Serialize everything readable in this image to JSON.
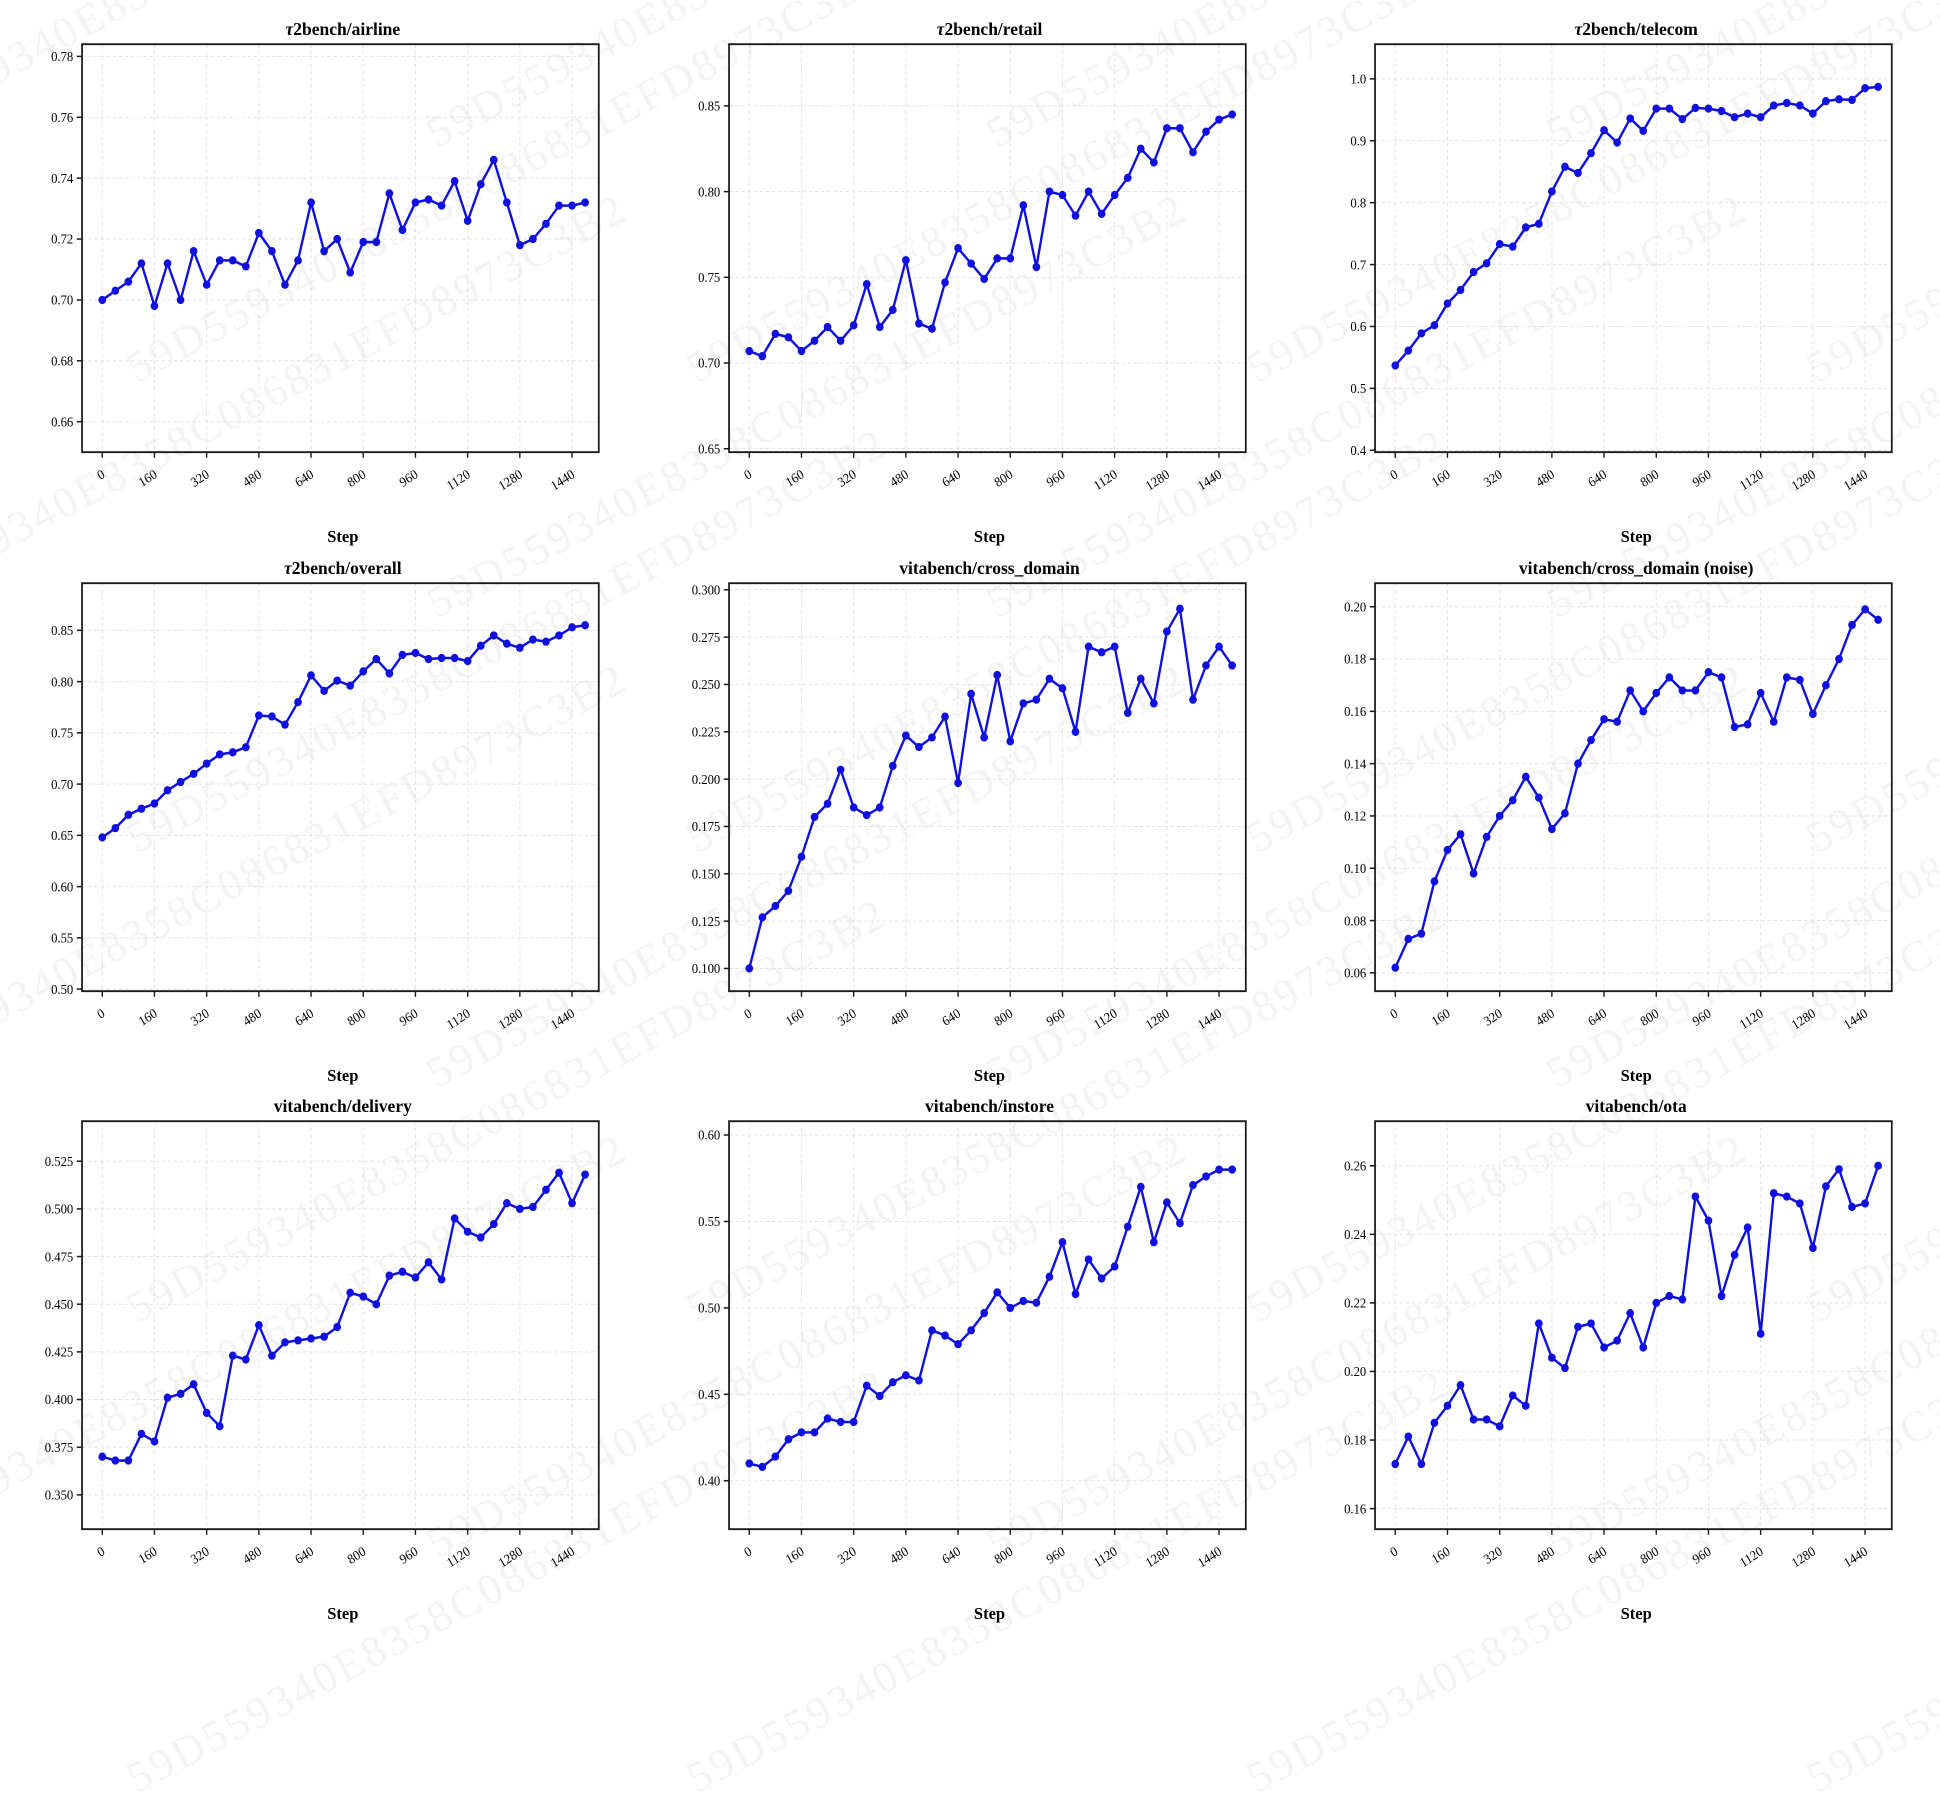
{
  "watermark": {
    "text": "59D559340E8358C086831EFD8973C3B2"
  },
  "style": {
    "line_color": "#0f0fe0",
    "grid_color": "#e2e2e2",
    "axis_color": "#1a1a1a"
  },
  "x_axis": {
    "label": "Step",
    "ticks": [
      0,
      160,
      320,
      480,
      640,
      800,
      960,
      1120,
      1280,
      1440
    ],
    "xlim": [
      -62,
      1522
    ]
  },
  "x": [
    0,
    40,
    80,
    120,
    160,
    200,
    240,
    280,
    320,
    360,
    400,
    440,
    480,
    520,
    560,
    600,
    640,
    680,
    720,
    760,
    800,
    840,
    880,
    920,
    960,
    1000,
    1040,
    1080,
    1120,
    1160,
    1200,
    1240,
    1280,
    1320,
    1360,
    1400,
    1440,
    1480
  ],
  "chart_data": [
    {
      "type": "line",
      "title": "τ2bench/airline",
      "xlabel": "Step",
      "ylabel": "",
      "ylim": [
        0.65,
        0.784
      ],
      "yticks": [
        "0.66",
        "0.68",
        "0.70",
        "0.72",
        "0.74",
        "0.76",
        "0.78"
      ],
      "values": [
        0.7,
        0.703,
        0.706,
        0.712,
        0.698,
        0.712,
        0.7,
        0.716,
        0.705,
        0.713,
        0.713,
        0.711,
        0.722,
        0.716,
        0.705,
        0.713,
        0.732,
        0.716,
        0.72,
        0.709,
        0.719,
        0.719,
        0.735,
        0.723,
        0.732,
        0.733,
        0.731,
        0.739,
        0.726,
        0.738,
        0.746,
        0.732,
        0.718,
        0.72,
        0.725,
        0.731,
        0.731,
        0.732
      ]
    },
    {
      "type": "line",
      "title": "τ2bench/retail",
      "xlabel": "Step",
      "ylabel": "",
      "ylim": [
        0.648,
        0.886
      ],
      "yticks": [
        "0.65",
        "0.70",
        "0.75",
        "0.80",
        "0.85"
      ],
      "values": [
        0.707,
        0.704,
        0.717,
        0.715,
        0.707,
        0.713,
        0.721,
        0.713,
        0.722,
        0.746,
        0.721,
        0.731,
        0.76,
        0.723,
        0.72,
        0.747,
        0.767,
        0.758,
        0.749,
        0.761,
        0.761,
        0.792,
        0.756,
        0.8,
        0.798,
        0.786,
        0.8,
        0.787,
        0.798,
        0.808,
        0.825,
        0.817,
        0.837,
        0.837,
        0.823,
        0.835,
        0.842,
        0.845
      ]
    },
    {
      "type": "line",
      "title": "τ2bench/telecom",
      "xlabel": "Step",
      "ylabel": "",
      "ylim": [
        0.397,
        1.056
      ],
      "yticks": [
        "0.4",
        "0.5",
        "0.6",
        "0.7",
        "0.8",
        "0.9",
        "1.0"
      ],
      "values": [
        0.537,
        0.561,
        0.589,
        0.602,
        0.637,
        0.659,
        0.688,
        0.702,
        0.733,
        0.729,
        0.76,
        0.766,
        0.818,
        0.858,
        0.848,
        0.88,
        0.917,
        0.897,
        0.936,
        0.916,
        0.952,
        0.952,
        0.935,
        0.953,
        0.952,
        0.948,
        0.938,
        0.944,
        0.938,
        0.957,
        0.961,
        0.957,
        0.944,
        0.964,
        0.967,
        0.966,
        0.985,
        0.987
      ]
    },
    {
      "type": "line",
      "title": "τ2bench/overall",
      "xlabel": "Step",
      "ylabel": "",
      "ylim": [
        0.498,
        0.896
      ],
      "yticks": [
        "0.50",
        "0.55",
        "0.60",
        "0.65",
        "0.70",
        "0.75",
        "0.80",
        "0.85"
      ],
      "values": [
        0.648,
        0.657,
        0.67,
        0.676,
        0.681,
        0.694,
        0.702,
        0.71,
        0.72,
        0.729,
        0.731,
        0.736,
        0.767,
        0.766,
        0.758,
        0.78,
        0.806,
        0.791,
        0.801,
        0.796,
        0.81,
        0.822,
        0.808,
        0.826,
        0.828,
        0.822,
        0.823,
        0.823,
        0.82,
        0.835,
        0.845,
        0.837,
        0.833,
        0.841,
        0.839,
        0.845,
        0.853,
        0.855
      ]
    },
    {
      "type": "line",
      "title": "vitabench/cross_domain",
      "xlabel": "Step",
      "ylabel": "",
      "ylim": [
        0.088,
        0.3035
      ],
      "yticks": [
        "0.100",
        "0.125",
        "0.150",
        "0.175",
        "0.200",
        "0.225",
        "0.250",
        "0.275",
        "0.300"
      ],
      "values": [
        0.1,
        0.127,
        0.133,
        0.141,
        0.159,
        0.18,
        0.187,
        0.205,
        0.185,
        0.181,
        0.185,
        0.207,
        0.223,
        0.217,
        0.222,
        0.233,
        0.198,
        0.245,
        0.222,
        0.255,
        0.22,
        0.24,
        0.242,
        0.253,
        0.248,
        0.225,
        0.27,
        0.267,
        0.27,
        0.235,
        0.253,
        0.24,
        0.278,
        0.29,
        0.242,
        0.26,
        0.27,
        0.26
      ]
    },
    {
      "type": "line",
      "title": "vitabench/cross_domain (noise)",
      "xlabel": "Step",
      "ylabel": "",
      "ylim": [
        0.053,
        0.209
      ],
      "yticks": [
        "0.06",
        "0.08",
        "0.10",
        "0.12",
        "0.14",
        "0.16",
        "0.18",
        "0.20"
      ],
      "values": [
        0.062,
        0.073,
        0.075,
        0.095,
        0.107,
        0.113,
        0.098,
        0.112,
        0.12,
        0.126,
        0.135,
        0.127,
        0.115,
        0.121,
        0.14,
        0.149,
        0.157,
        0.156,
        0.168,
        0.16,
        0.167,
        0.173,
        0.168,
        0.168,
        0.175,
        0.173,
        0.154,
        0.155,
        0.167,
        0.156,
        0.173,
        0.172,
        0.159,
        0.17,
        0.18,
        0.193,
        0.199,
        0.195
      ]
    },
    {
      "type": "line",
      "title": "vitabench/delivery",
      "xlabel": "Step",
      "ylabel": "",
      "ylim": [
        0.332,
        0.546
      ],
      "yticks": [
        "0.350",
        "0.375",
        "0.400",
        "0.425",
        "0.450",
        "0.475",
        "0.500",
        "0.525"
      ],
      "values": [
        0.37,
        0.368,
        0.368,
        0.382,
        0.378,
        0.401,
        0.403,
        0.408,
        0.393,
        0.386,
        0.423,
        0.421,
        0.439,
        0.423,
        0.43,
        0.431,
        0.432,
        0.433,
        0.438,
        0.456,
        0.454,
        0.45,
        0.465,
        0.467,
        0.464,
        0.472,
        0.463,
        0.495,
        0.488,
        0.485,
        0.492,
        0.503,
        0.5,
        0.501,
        0.51,
        0.519,
        0.503,
        0.518
      ]
    },
    {
      "type": "line",
      "title": "vitabench/instore",
      "xlabel": "Step",
      "ylabel": "",
      "ylim": [
        0.372,
        0.608
      ],
      "yticks": [
        "0.40",
        "0.45",
        "0.50",
        "0.55",
        "0.60"
      ],
      "values": [
        0.41,
        0.408,
        0.414,
        0.424,
        0.428,
        0.428,
        0.436,
        0.434,
        0.434,
        0.455,
        0.449,
        0.457,
        0.461,
        0.458,
        0.487,
        0.484,
        0.479,
        0.487,
        0.497,
        0.509,
        0.5,
        0.504,
        0.503,
        0.518,
        0.538,
        0.508,
        0.528,
        0.517,
        0.524,
        0.547,
        0.57,
        0.538,
        0.561,
        0.549,
        0.571,
        0.576,
        0.58,
        0.58
      ]
    },
    {
      "type": "line",
      "title": "vitabench/ota",
      "xlabel": "Step",
      "ylabel": "",
      "ylim": [
        0.154,
        0.273
      ],
      "yticks": [
        "0.16",
        "0.18",
        "0.20",
        "0.22",
        "0.24",
        "0.26"
      ],
      "values": [
        0.173,
        0.181,
        0.173,
        0.185,
        0.19,
        0.196,
        0.186,
        0.186,
        0.184,
        0.193,
        0.19,
        0.214,
        0.204,
        0.201,
        0.213,
        0.214,
        0.207,
        0.209,
        0.217,
        0.207,
        0.22,
        0.222,
        0.221,
        0.251,
        0.244,
        0.222,
        0.234,
        0.242,
        0.211,
        0.252,
        0.251,
        0.249,
        0.236,
        0.254,
        0.259,
        0.248,
        0.249,
        0.26
      ]
    }
  ]
}
